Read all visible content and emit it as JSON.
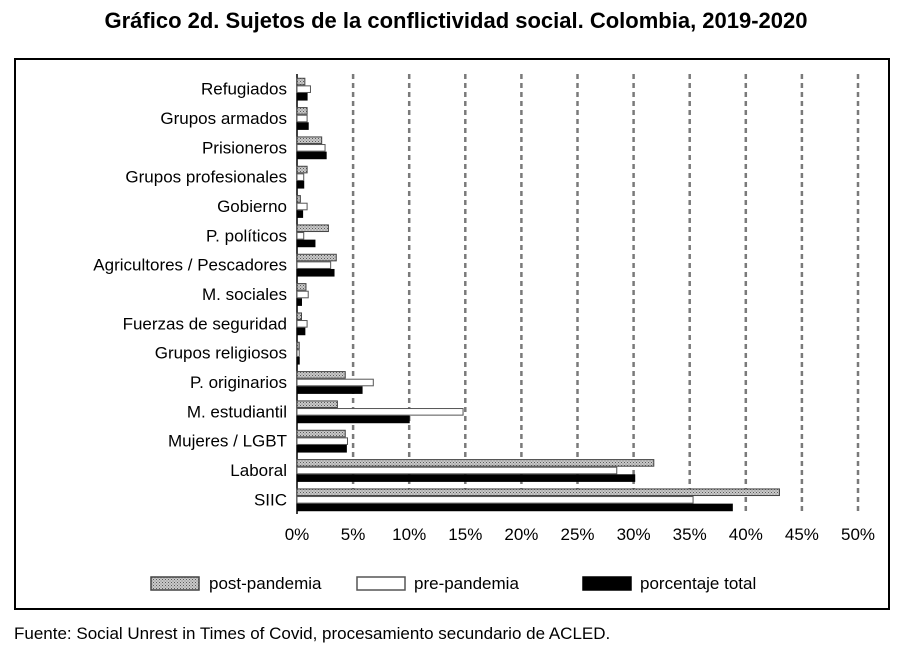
{
  "chart_data": {
    "type": "bar",
    "orientation": "horizontal",
    "title": "Gráfico 2d. Sujetos de la conflictividad social. Colombia, 2019-2020",
    "xlabel": "",
    "ylabel": "",
    "xlim": [
      0,
      50
    ],
    "x_ticks": [
      "0%",
      "5%",
      "10%",
      "15%",
      "20%",
      "25%",
      "30%",
      "35%",
      "40%",
      "45%",
      "50%"
    ],
    "categories": [
      "Refugiados",
      "Grupos armados",
      "Prisioneros",
      "Grupos profesionales",
      "Gobierno",
      "P. políticos",
      "Agricultores / Pescadores",
      "M. sociales",
      "Fuerzas de seguridad",
      "Grupos religiosos",
      "P. originarios",
      "M. estudiantil",
      "Mujeres / LGBT",
      "Laboral",
      "SIIC"
    ],
    "series": [
      {
        "name": "post-pandemia",
        "values": [
          0.7,
          0.9,
          2.2,
          0.9,
          0.3,
          2.8,
          3.5,
          0.8,
          0.4,
          0.2,
          4.3,
          3.6,
          4.3,
          31.8,
          43.0
        ]
      },
      {
        "name": "pre-pandemia",
        "values": [
          1.2,
          0.9,
          2.5,
          0.6,
          0.9,
          0.6,
          3.0,
          1.0,
          0.9,
          0.2,
          6.8,
          14.8,
          4.5,
          28.5,
          35.3
        ]
      },
      {
        "name": "porcentaje total",
        "values": [
          0.9,
          1.0,
          2.6,
          0.6,
          0.5,
          1.6,
          3.3,
          0.4,
          0.7,
          0.2,
          5.8,
          10.0,
          4.4,
          30.1,
          38.8
        ]
      }
    ],
    "grid": true,
    "legend_position": "bottom"
  },
  "source": "Fuente: Social Unrest in Times of Covid, procesamiento secundario de ACLED."
}
